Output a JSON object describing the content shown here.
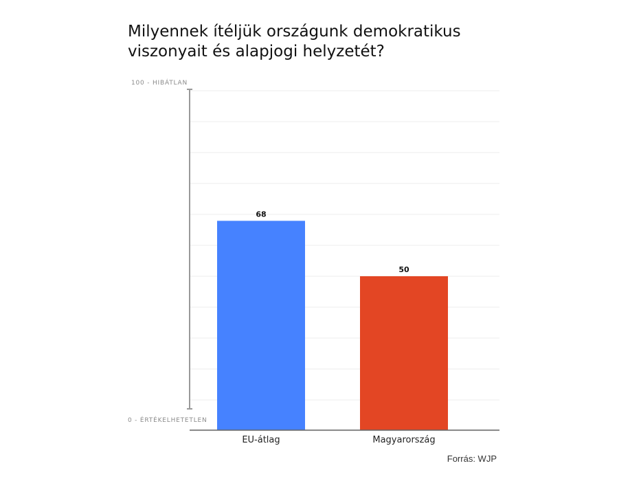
{
  "title_lines": [
    "Milyennek ítéljük országunk demokratikus",
    "viszonyait és alapjogi helyzetét?"
  ],
  "source": "Forrás: WJP",
  "axis": {
    "top_label": "100 - HIBÁTLAN",
    "bottom_label": "0 - ÉRTÉKELHETETLEN"
  },
  "colors": {
    "eu": "#4682FF",
    "hu": "#E34624",
    "axis": "#999999",
    "grid": "#ececec"
  },
  "chart_data": {
    "type": "bar",
    "title": "Milyennek ítéljük országunk demokratikus viszonyait és alapjogi helyzetét?",
    "categories": [
      "EU-átlag",
      "Magyarország"
    ],
    "values": [
      68,
      50
    ],
    "data_labels": [
      "68",
      "50"
    ],
    "ylim": [
      0,
      100
    ],
    "ytick_labels": [
      "0 - ÉRTÉKELHETETLEN",
      "100 - HIBÁTLAN"
    ],
    "grid": true,
    "legend": "none"
  }
}
